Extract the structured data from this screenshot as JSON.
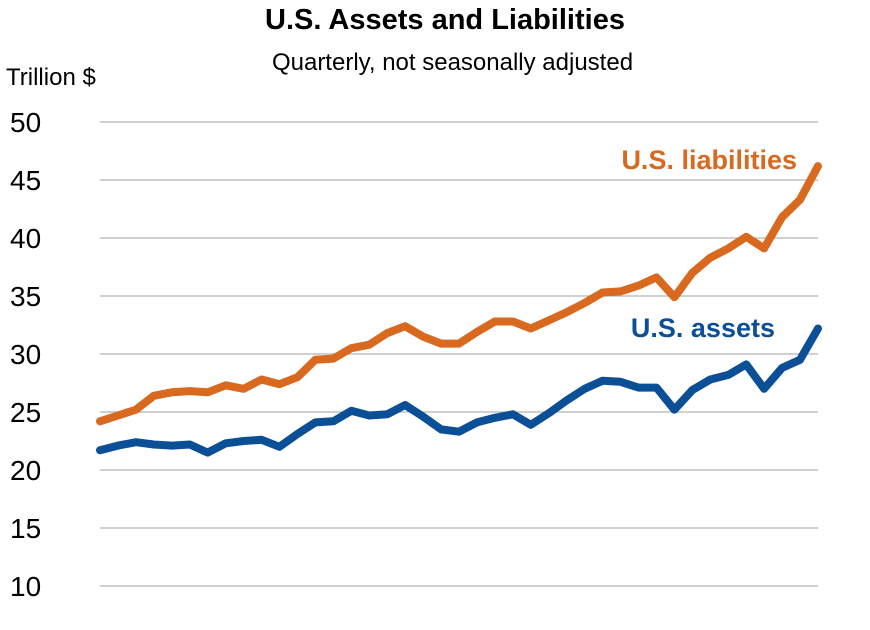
{
  "chart_data": {
    "type": "line",
    "title": "U.S. Assets and Liabilities",
    "subtitle": "Quarterly, not seasonally adjusted",
    "xlabel": "",
    "ylabel": "Trillion $",
    "ylim": [
      10,
      50
    ],
    "yticks": [
      "50",
      "45",
      "40",
      "35",
      "30",
      "25",
      "20",
      "15",
      "10"
    ],
    "grid": true,
    "legend": "inline labels",
    "series": [
      {
        "name": "U.S. liabilities",
        "color": "#d9691f",
        "values": [
          24.2,
          24.7,
          25.2,
          26.4,
          26.7,
          26.8,
          26.7,
          27.3,
          27.0,
          27.8,
          27.4,
          28.0,
          29.5,
          29.6,
          30.5,
          30.8,
          31.8,
          32.4,
          31.5,
          30.9,
          30.9,
          31.9,
          32.8,
          32.8,
          32.2,
          32.9,
          33.6,
          34.4,
          35.3,
          35.4,
          35.9,
          36.6,
          34.9,
          37.0,
          38.3,
          39.1,
          40.1,
          39.1,
          41.8,
          43.3,
          46.2
        ]
      },
      {
        "name": "U.S. assets",
        "color": "#0b4f96",
        "values": [
          21.7,
          22.1,
          22.4,
          22.2,
          22.1,
          22.2,
          21.5,
          22.3,
          22.5,
          22.6,
          22.0,
          23.1,
          24.1,
          24.2,
          25.1,
          24.7,
          24.8,
          25.6,
          24.6,
          23.5,
          23.3,
          24.1,
          24.5,
          24.8,
          23.9,
          24.9,
          26.0,
          27.0,
          27.7,
          27.6,
          27.1,
          27.1,
          25.2,
          26.9,
          27.8,
          28.2,
          29.1,
          27.0,
          28.8,
          29.5,
          32.2
        ]
      }
    ]
  }
}
